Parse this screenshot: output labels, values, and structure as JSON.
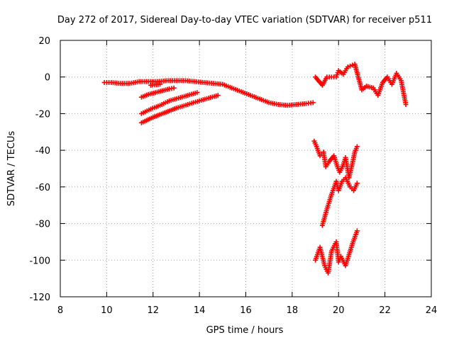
{
  "chart_data": {
    "type": "scatter",
    "title": "Day 272 of 2017, Sidereal Day-to-day VTEC variation (SDTVAR) for receiver p511",
    "xlabel": "GPS time / hours",
    "ylabel": "SDTVAR / TECUs",
    "xlim": [
      8,
      24
    ],
    "ylim": [
      -120,
      20
    ],
    "xticks": [
      8,
      10,
      12,
      14,
      16,
      18,
      20,
      22,
      24
    ],
    "yticks": [
      -120,
      -100,
      -80,
      -60,
      -40,
      -20,
      0,
      20
    ],
    "grid": true,
    "marker": "+",
    "marker_color": "#ff0000",
    "series": [
      {
        "name": "main-track",
        "x": [
          9.9,
          10.2,
          10.6,
          11.0,
          11.4,
          11.8,
          12.2,
          12.6,
          13.0,
          13.4,
          13.8,
          14.2,
          14.6,
          15.0,
          15.4,
          15.8,
          16.2,
          16.6,
          17.0,
          17.4,
          17.8,
          18.2,
          18.6,
          18.9
        ],
        "y": [
          -3,
          -3,
          -3.5,
          -3.5,
          -2.5,
          -2.5,
          -2.5,
          -2,
          -2,
          -2,
          -2.5,
          -3,
          -3.5,
          -4,
          -6,
          -8,
          -10,
          -12,
          -14,
          -15,
          -15.5,
          -15,
          -14.5,
          -14
        ]
      },
      {
        "name": "arc-1",
        "x": [
          11.5,
          11.8,
          12.1,
          12.4,
          12.7,
          12.9
        ],
        "y": [
          -11,
          -9.5,
          -8.5,
          -7.5,
          -6.5,
          -6
        ]
      },
      {
        "name": "arc-2",
        "x": [
          11.5,
          11.9,
          12.3,
          12.7,
          13.1,
          13.5,
          13.9
        ],
        "y": [
          -20,
          -17.5,
          -15.5,
          -13,
          -11.5,
          -10,
          -8.5
        ]
      },
      {
        "name": "arc-3",
        "x": [
          11.5,
          12.0,
          12.5,
          13.0,
          13.5,
          14.0,
          14.4,
          14.8
        ],
        "y": [
          -25,
          -22,
          -19.5,
          -17,
          -15,
          -13,
          -11.5,
          -10
        ]
      },
      {
        "name": "arc-4",
        "x": [
          11.9,
          12.3
        ],
        "y": [
          -4.5,
          -4
        ]
      },
      {
        "name": "late-cluster-1",
        "x": [
          19.0,
          19.3,
          19.5,
          19.7,
          19.9,
          20.0,
          20.2,
          20.4
        ],
        "y": [
          0,
          -4.5,
          0,
          0,
          0,
          3.5,
          1.5,
          5.5
        ]
      },
      {
        "name": "late-cluster-2",
        "x": [
          20.5,
          20.7,
          21.0,
          21.2,
          21.5,
          21.7,
          21.9,
          22.1,
          22.3,
          22.5,
          22.7,
          22.9
        ],
        "y": [
          6,
          7,
          -7,
          -5,
          -6,
          -10,
          -3,
          0,
          -4,
          2,
          -2,
          -15
        ]
      },
      {
        "name": "group-40",
        "x": [
          18.95,
          19.05,
          19.2,
          19.35,
          19.45,
          19.6,
          19.8,
          19.95,
          20.05,
          20.2,
          20.3,
          20.45,
          20.6,
          20.7,
          20.8
        ],
        "y": [
          -35,
          -38,
          -43,
          -41,
          -49,
          -46,
          -43,
          -49,
          -52,
          -48,
          -44,
          -55,
          -47,
          -41,
          -38
        ]
      },
      {
        "name": "group-60",
        "x": [
          19.3,
          19.5,
          19.7,
          19.9,
          20.0,
          20.15,
          20.3,
          20.5,
          20.65,
          20.8
        ],
        "y": [
          -81,
          -72,
          -64,
          -57,
          -62,
          -57,
          -55,
          -60,
          -62,
          -58
        ]
      },
      {
        "name": "group-100",
        "x": [
          19.0,
          19.2,
          19.4,
          19.55,
          19.7,
          19.9,
          20.0,
          20.1,
          20.3,
          20.45,
          20.6,
          20.8
        ],
        "y": [
          -100,
          -93,
          -103,
          -107,
          -95,
          -90,
          -101,
          -98,
          -103,
          -97,
          -91,
          -84
        ]
      }
    ]
  }
}
